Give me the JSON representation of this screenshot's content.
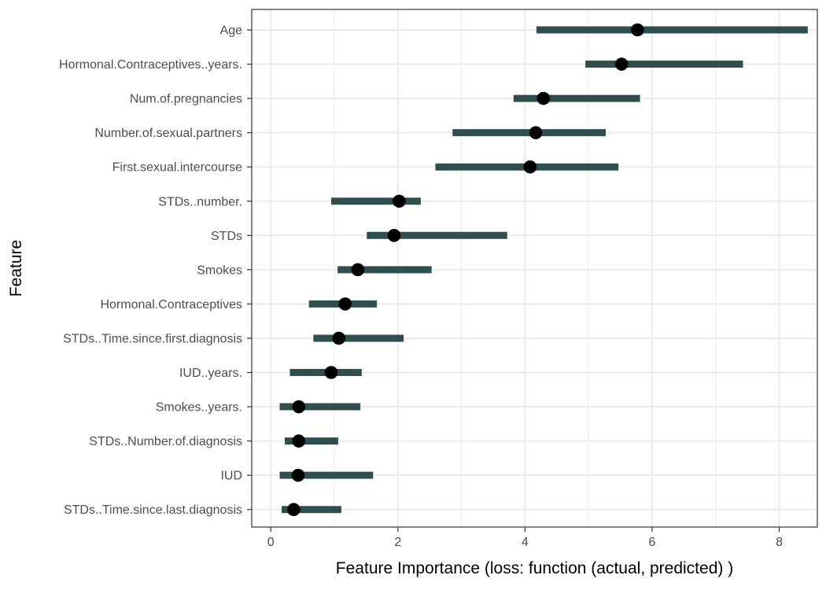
{
  "chart_data": {
    "type": "dot-interval",
    "title": "",
    "xlabel": "Feature Importance (loss: function (actual, predicted) )",
    "ylabel": "Feature",
    "xlim": [
      -0.3,
      8.6
    ],
    "xticks": [
      0,
      2,
      4,
      6,
      8
    ],
    "grid": true,
    "colors": {
      "interval": "#2f4f4f",
      "point": "#000000",
      "grid": "#ebebeb",
      "border": "#333333"
    },
    "features": [
      {
        "name": "Age",
        "importance": 5.77,
        "lower": 4.18,
        "upper": 8.45
      },
      {
        "name": "Hormonal.Contraceptives..years.",
        "importance": 5.52,
        "lower": 4.95,
        "upper": 7.43
      },
      {
        "name": "Num.of.pregnancies",
        "importance": 4.29,
        "lower": 3.82,
        "upper": 5.81
      },
      {
        "name": "Number.of.sexual.partners",
        "importance": 4.17,
        "lower": 2.86,
        "upper": 5.27
      },
      {
        "name": "First.sexual.intercourse",
        "importance": 4.08,
        "lower": 2.59,
        "upper": 5.47
      },
      {
        "name": "STDs..number.",
        "importance": 2.02,
        "lower": 0.95,
        "upper": 2.36
      },
      {
        "name": "STDs",
        "importance": 1.94,
        "lower": 1.51,
        "upper": 3.72
      },
      {
        "name": "Smokes",
        "importance": 1.37,
        "lower": 1.05,
        "upper": 2.53
      },
      {
        "name": "Hormonal.Contraceptives",
        "importance": 1.17,
        "lower": 0.6,
        "upper": 1.67
      },
      {
        "name": "STDs..Time.since.first.diagnosis",
        "importance": 1.07,
        "lower": 0.67,
        "upper": 2.09
      },
      {
        "name": "IUD..years.",
        "importance": 0.95,
        "lower": 0.3,
        "upper": 1.43
      },
      {
        "name": "Smokes..years.",
        "importance": 0.44,
        "lower": 0.14,
        "upper": 1.41
      },
      {
        "name": "STDs..Number.of.diagnosis",
        "importance": 0.44,
        "lower": 0.22,
        "upper": 1.06
      },
      {
        "name": "IUD",
        "importance": 0.43,
        "lower": 0.14,
        "upper": 1.61
      },
      {
        "name": "STDs..Time.since.last.diagnosis",
        "importance": 0.36,
        "lower": 0.17,
        "upper": 1.11
      }
    ]
  }
}
